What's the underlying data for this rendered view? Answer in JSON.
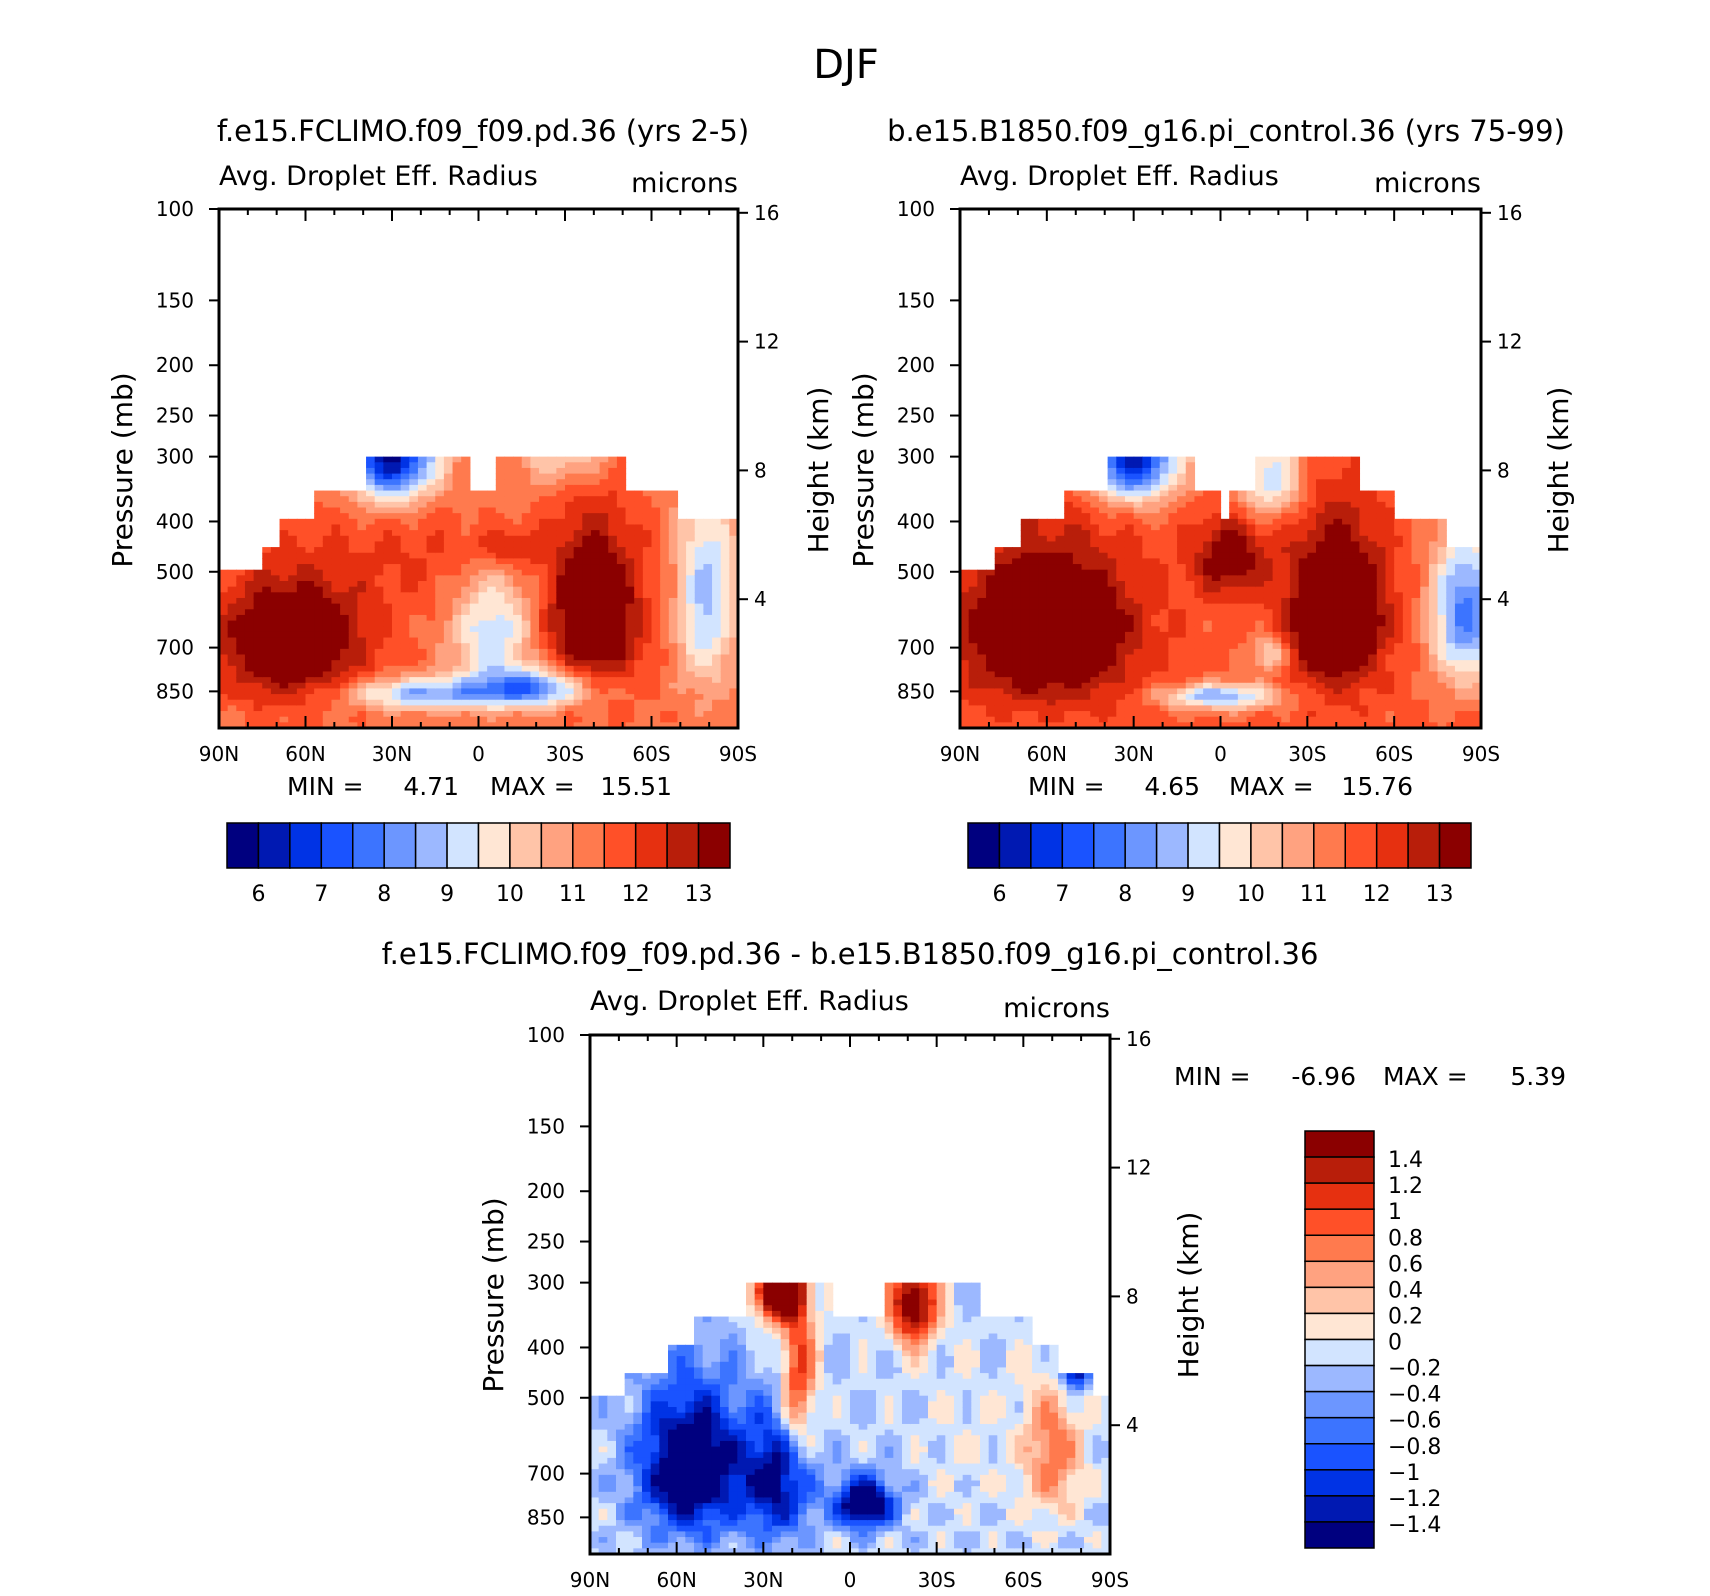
{
  "figure": {
    "title": "DJF"
  },
  "colors": {
    "abs": [
      "#00007f",
      "#0019b2",
      "#0033e5",
      "#1a53ff",
      "#3c74ff",
      "#6c96ff",
      "#9cb8ff",
      "#d2e4ff",
      "#ffe6d4",
      "#ffc4a8",
      "#ffa280",
      "#ff7a4e",
      "#ff5028",
      "#e63010",
      "#b81e0a",
      "#8b0000"
    ],
    "diff": [
      "#00007f",
      "#0019b2",
      "#0033e5",
      "#1a53ff",
      "#3c74ff",
      "#6c96ff",
      "#9cb8ff",
      "#d2e4ff",
      "#ffe6d4",
      "#ffc4a8",
      "#ffa280",
      "#ff7a4e",
      "#ff5028",
      "#e63010",
      "#b81e0a",
      "#8b0000"
    ]
  },
  "chart_data": [
    {
      "type": "heatmap",
      "title": "f.e15.FCLIMO.f09_f09.pd.36 (yrs 2-5)",
      "subtitle_left": "Avg. Droplet Eff. Radius",
      "subtitle_right": "microns",
      "ylabel": "Pressure (mb)",
      "ylabel_right": "Height (km)",
      "yticks": [
        "100",
        "150",
        "200",
        "250",
        "300",
        "400",
        "500",
        "700",
        "850"
      ],
      "yticks_right": [
        "16",
        "12",
        "8",
        "4"
      ],
      "xticks": [
        "90N",
        "60N",
        "30N",
        "0",
        "30S",
        "60S",
        "90S"
      ],
      "stats": {
        "min_label": "MIN =",
        "min": "4.71",
        "max_label": "MAX =",
        "max": "15.51"
      },
      "colorbar": {
        "labels": [
          "6",
          "7",
          "8",
          "9",
          "10",
          "11",
          "12",
          "13"
        ],
        "levels": [
          5.5,
          6,
          6.5,
          7,
          7.5,
          8,
          8.5,
          9,
          9.5,
          10,
          10.5,
          11,
          11.5,
          12,
          12.5,
          13
        ]
      },
      "field": {
        "x_range": [
          -90,
          90
        ],
        "top_pressure_by_lat": [
          [
            -90,
            500
          ],
          [
            -80,
            500
          ],
          [
            -75,
            450
          ],
          [
            -70,
            400
          ],
          [
            -58,
            350
          ],
          [
            -40,
            300
          ],
          [
            -5,
            300
          ],
          [
            -4,
            350
          ],
          [
            6,
            350
          ],
          [
            7,
            300
          ],
          [
            50,
            300
          ],
          [
            51,
            350
          ],
          [
            68,
            350
          ],
          [
            69,
            400
          ],
          [
            88,
            400
          ],
          [
            90,
            500
          ]
        ],
        "background": 11.4,
        "blobs": [
          {
            "lat": -65,
            "p": 680,
            "sx": 25,
            "sy": 180,
            "amp": 3.0
          },
          {
            "lat": 40,
            "p": 600,
            "sx": 16,
            "sy": 210,
            "amp": 3.0
          },
          {
            "lat": 5,
            "p": 650,
            "sx": 14,
            "sy": 170,
            "amp": -2.3
          },
          {
            "lat": 18,
            "p": 840,
            "sx": 20,
            "sy": 70,
            "amp": -3.5
          },
          {
            "lat": -20,
            "p": 860,
            "sx": 25,
            "sy": 60,
            "amp": -2.8
          },
          {
            "lat": -30,
            "p": 300,
            "sx": 15,
            "sy": 60,
            "amp": -5.5
          },
          {
            "lat": 30,
            "p": 300,
            "sx": 15,
            "sy": 40,
            "amp": -1.6
          },
          {
            "lat": 79,
            "p": 560,
            "sx": 10,
            "sy": 250,
            "amp": -2.6
          },
          {
            "lat": -20,
            "p": 470,
            "sx": 30,
            "sy": 120,
            "amp": 0.6
          },
          {
            "lat": 10,
            "p": 450,
            "sx": 12,
            "sy": 40,
            "amp": 1.2
          }
        ]
      }
    },
    {
      "type": "heatmap",
      "title": "b.e15.B1850.f09_g16.pi_control.36 (yrs 75-99)",
      "subtitle_left": "Avg. Droplet Eff. Radius",
      "subtitle_right": "microns",
      "ylabel": "Pressure (mb)",
      "ylabel_right": "Height (km)",
      "yticks": [
        "100",
        "150",
        "200",
        "250",
        "300",
        "400",
        "500",
        "700",
        "850"
      ],
      "yticks_right": [
        "16",
        "12",
        "8",
        "4"
      ],
      "xticks": [
        "90N",
        "60N",
        "30N",
        "0",
        "30S",
        "60S",
        "90S"
      ],
      "stats": {
        "min_label": "MIN =",
        "min": "4.65",
        "max_label": "MAX =",
        "max": "15.76"
      },
      "colorbar": {
        "labels": [
          "6",
          "7",
          "8",
          "9",
          "10",
          "11",
          "12",
          "13"
        ],
        "levels": [
          5.5,
          6,
          6.5,
          7,
          7.5,
          8,
          8.5,
          9,
          9.5,
          10,
          10.5,
          11,
          11.5,
          12,
          12.5,
          13
        ]
      },
      "field": {
        "x_range": [
          -90,
          90
        ],
        "top_pressure_by_lat": [
          [
            -90,
            500
          ],
          [
            -78,
            450
          ],
          [
            -68,
            400
          ],
          [
            -55,
            350
          ],
          [
            -40,
            300
          ],
          [
            -9,
            300
          ],
          [
            -8,
            350
          ],
          [
            0,
            350
          ],
          [
            1,
            400
          ],
          [
            3,
            350
          ],
          [
            10,
            350
          ],
          [
            12,
            300
          ],
          [
            46,
            300
          ],
          [
            47,
            350
          ],
          [
            60,
            350
          ],
          [
            61,
            400
          ],
          [
            78,
            400
          ],
          [
            79,
            450
          ],
          [
            90,
            450
          ]
        ],
        "background": 11.6,
        "blobs": [
          {
            "lat": -60,
            "p": 650,
            "sx": 30,
            "sy": 220,
            "amp": 3.0
          },
          {
            "lat": 40,
            "p": 600,
            "sx": 17,
            "sy": 220,
            "amp": 3.0
          },
          {
            "lat": 3,
            "p": 470,
            "sx": 12,
            "sy": 80,
            "amp": 2.0
          },
          {
            "lat": -30,
            "p": 300,
            "sx": 15,
            "sy": 60,
            "amp": -5.5
          },
          {
            "lat": 17,
            "p": 330,
            "sx": 12,
            "sy": 60,
            "amp": -2.5
          },
          {
            "lat": 17,
            "p": 720,
            "sx": 6,
            "sy": 60,
            "amp": -2.0
          },
          {
            "lat": 0,
            "p": 870,
            "sx": 20,
            "sy": 50,
            "amp": -3.0
          },
          {
            "lat": 85,
            "p": 600,
            "sx": 12,
            "sy": 200,
            "amp": -3.8
          }
        ]
      }
    },
    {
      "type": "heatmap",
      "title": "f.e15.FCLIMO.f09_f09.pd.36 - b.e15.B1850.f09_g16.pi_control.36",
      "subtitle_left": "Avg. Droplet Eff. Radius",
      "subtitle_right": "microns",
      "ylabel": "Pressure (mb)",
      "ylabel_right": "Height (km)",
      "yticks": [
        "100",
        "150",
        "200",
        "250",
        "300",
        "400",
        "500",
        "700",
        "850"
      ],
      "yticks_right": [
        "16",
        "12",
        "8",
        "4"
      ],
      "xticks": [
        "90N",
        "60N",
        "30N",
        "0",
        "30S",
        "60S",
        "90S"
      ],
      "stats": {
        "min_label": "MIN =",
        "min": "-6.96",
        "max_label": "MAX =",
        "max": "5.39"
      },
      "colorbar": {
        "labels": [
          "1.4",
          "1.2",
          "1",
          "0.8",
          "0.6",
          "0.4",
          "0.2",
          "0",
          "-0.2",
          "-0.4",
          "-0.6",
          "-0.8",
          "-1",
          "-1.2",
          "-1.4"
        ],
        "levels": [
          -1.6,
          -1.4,
          -1.2,
          -1,
          -0.8,
          -0.6,
          -0.4,
          -0.2,
          0,
          0.2,
          0.4,
          0.6,
          0.8,
          1,
          1.2,
          1.4
        ]
      },
      "field": {
        "x_range": [
          -90,
          90
        ],
        "top_pressure_by_lat": [
          [
            -90,
            500
          ],
          [
            -77,
            450
          ],
          [
            -63,
            400
          ],
          [
            -53,
            350
          ],
          [
            -37,
            300
          ],
          [
            -28,
            300
          ],
          [
            -27,
            300
          ],
          [
            -7,
            300
          ],
          [
            -6,
            350
          ],
          [
            12,
            350
          ],
          [
            13,
            300
          ],
          [
            45,
            300
          ],
          [
            46,
            350
          ],
          [
            62,
            350
          ],
          [
            63,
            400
          ],
          [
            72,
            400
          ],
          [
            73,
            450
          ],
          [
            82,
            450
          ],
          [
            83,
            500
          ],
          [
            90,
            500
          ]
        ],
        "background": -0.15,
        "blobs": [
          {
            "lat": -55,
            "p": 680,
            "sx": 18,
            "sy": 220,
            "amp": -1.8
          },
          {
            "lat": -25,
            "p": 720,
            "sx": 12,
            "sy": 200,
            "amp": -1.3
          },
          {
            "lat": 5,
            "p": 800,
            "sx": 10,
            "sy": 90,
            "amp": -1.8
          },
          {
            "lat": -18,
            "p": 450,
            "sx": 6,
            "sy": 180,
            "amp": 1.3
          },
          {
            "lat": -25,
            "p": 310,
            "sx": 8,
            "sy": 40,
            "amp": 2.8
          },
          {
            "lat": 22,
            "p": 330,
            "sx": 8,
            "sy": 60,
            "amp": 2.0
          },
          {
            "lat": 70,
            "p": 640,
            "sx": 10,
            "sy": 180,
            "amp": 0.9
          },
          {
            "lat": 78,
            "p": 440,
            "sx": 5,
            "sy": 40,
            "amp": -1.6
          },
          {
            "lat": 40,
            "p": 600,
            "sx": 15,
            "sy": 200,
            "amp": 0.1
          }
        ]
      }
    }
  ]
}
